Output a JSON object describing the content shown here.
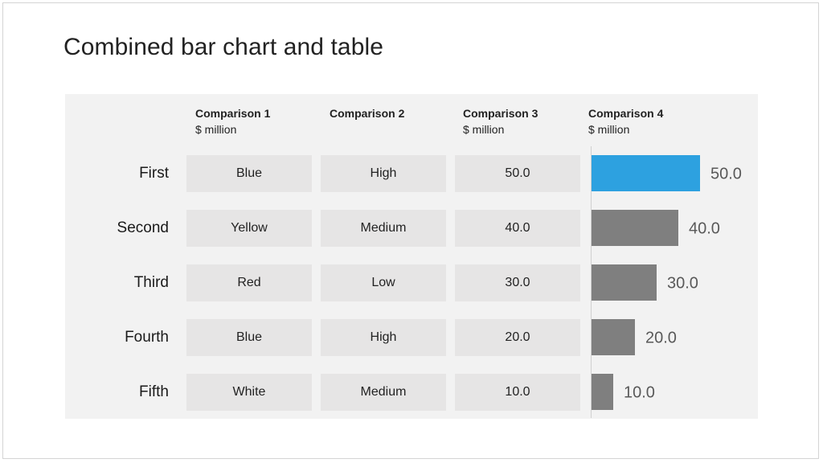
{
  "title": "Combined bar chart and table",
  "columns": [
    {
      "header": "Comparison 1",
      "unit": "$ million"
    },
    {
      "header": "Comparison 2",
      "unit": ""
    },
    {
      "header": "Comparison 3",
      "unit": "$ million"
    },
    {
      "header": "Comparison 4",
      "unit": "$ million"
    }
  ],
  "rows": [
    {
      "label": "First",
      "c1": "Blue",
      "c2": "High",
      "c3": "50.0"
    },
    {
      "label": "Second",
      "c1": "Yellow",
      "c2": "Medium",
      "c3": "40.0"
    },
    {
      "label": "Third",
      "c1": "Red",
      "c2": "Low",
      "c3": "30.0"
    },
    {
      "label": "Fourth",
      "c1": "Blue",
      "c2": "High",
      "c3": "20.0"
    },
    {
      "label": "Fifth",
      "c1": "White",
      "c2": "Medium",
      "c3": "10.0"
    }
  ],
  "chart_data": {
    "type": "bar",
    "orientation": "horizontal",
    "categories": [
      "First",
      "Second",
      "Third",
      "Fourth",
      "Fifth"
    ],
    "values": [
      50.0,
      40.0,
      30.0,
      20.0,
      10.0
    ],
    "data_labels": [
      "50.0",
      "40.0",
      "30.0",
      "20.0",
      "10.0"
    ],
    "xlim": [
      0,
      50
    ],
    "grid": false,
    "colors": {
      "highlight": "#2da1e0",
      "default": "#7f7f7f",
      "label": "#595959"
    },
    "highlight_index": 0
  }
}
